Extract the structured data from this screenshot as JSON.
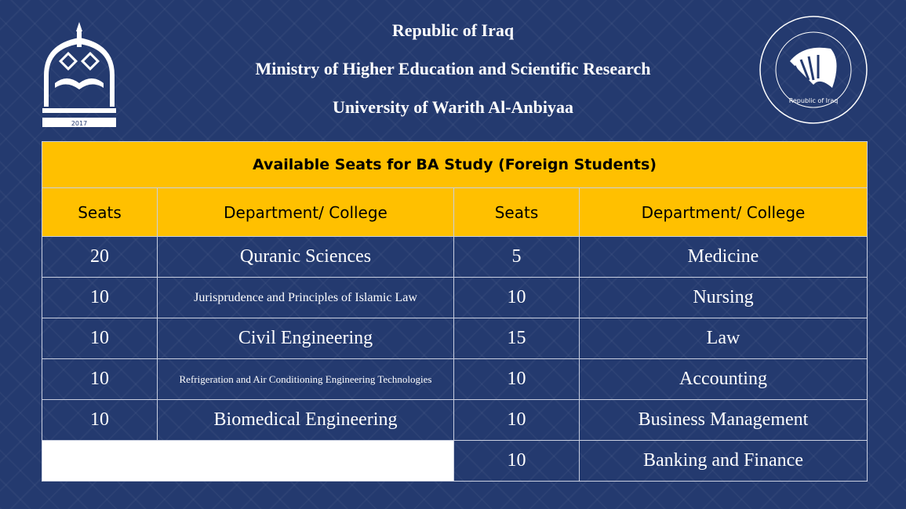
{
  "header": {
    "line1": "Republic of Iraq",
    "line2": "Ministry of Higher Education and Scientific Research",
    "line3": "University of Warith Al-Anbiyaa"
  },
  "logos": {
    "left": "University of Warith Al-Anbiyaa 2017",
    "right": "Republic of Iraq Ministry of Higher Education and Scientific Research"
  },
  "table": {
    "title": "Available Seats for BA Study (Foreign Students)",
    "headers": [
      "Seats",
      "Department/ College",
      "Seats",
      "Department/ College"
    ],
    "rows": [
      {
        "left_seats": "20",
        "left_dept": "Quranic Sciences",
        "right_seats": "5",
        "right_dept": "Medicine"
      },
      {
        "left_seats": "10",
        "left_dept": "Jurisprudence and Principles of Islamic Law",
        "right_seats": "10",
        "right_dept": "Nursing"
      },
      {
        "left_seats": "10",
        "left_dept": "Civil Engineering",
        "right_seats": "15",
        "right_dept": "Law"
      },
      {
        "left_seats": "10",
        "left_dept": "Refrigeration and Air Conditioning Engineering Technologies",
        "right_seats": "10",
        "right_dept": "Accounting"
      },
      {
        "left_seats": "10",
        "left_dept": "Biomedical Engineering",
        "right_seats": "10",
        "right_dept": "Business Management"
      },
      {
        "right_seats": "10",
        "right_dept": "Banking and Finance"
      }
    ]
  },
  "colors": {
    "background": "#243a6f",
    "header_fill": "#ffc000"
  }
}
